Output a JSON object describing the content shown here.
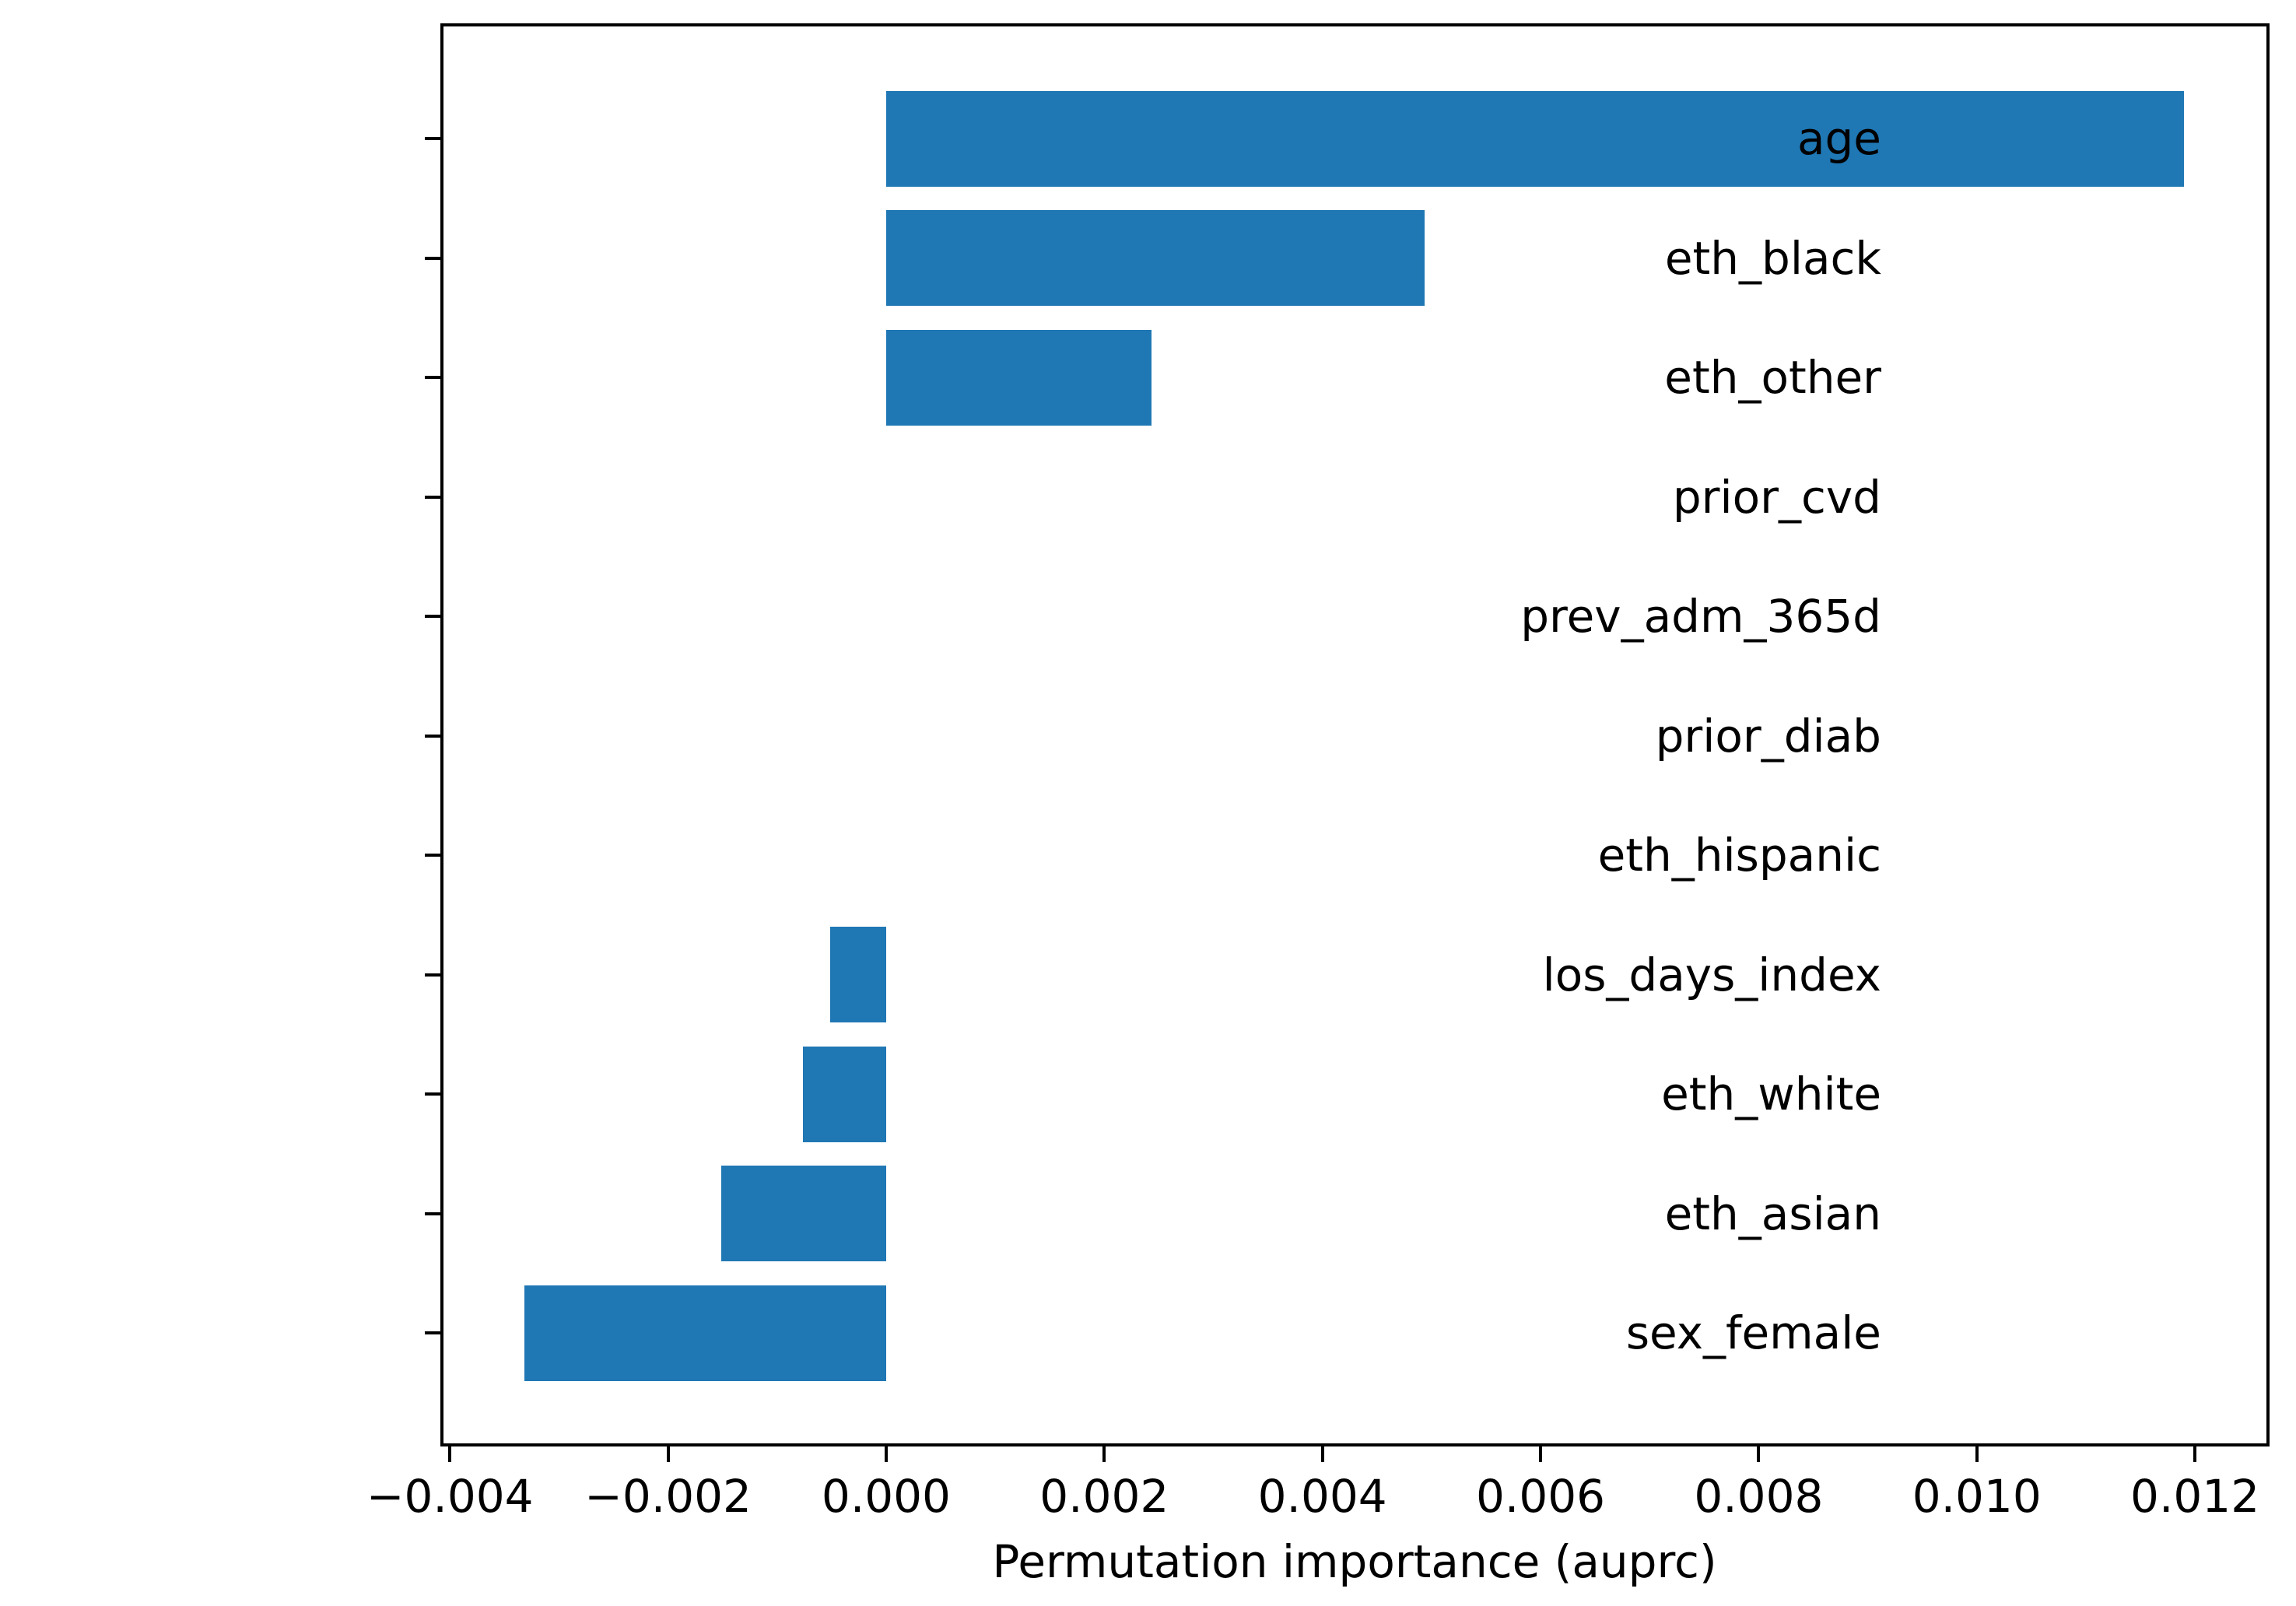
{
  "chart_data": {
    "type": "bar",
    "orientation": "horizontal",
    "title": "",
    "xlabel": "Permutation importance (auprc)",
    "ylabel": "",
    "categories": [
      "age",
      "eth_black",
      "eth_other",
      "prior_cvd",
      "prev_adm_365d",
      "prior_diab",
      "eth_hispanic",
      "los_days_index",
      "eth_white",
      "eth_asian",
      "sex_female"
    ],
    "values": [
      0.0119,
      0.00494,
      0.00243,
      0.0,
      0.0,
      0.0,
      0.0,
      -0.00051,
      -0.00076,
      -0.00151,
      -0.00332
    ],
    "xticks": [
      -0.004,
      -0.002,
      0.0,
      0.002,
      0.004,
      0.006,
      0.008,
      0.01,
      0.012
    ],
    "xtick_labels": [
      "−0.004",
      "−0.002",
      "0.000",
      "0.002",
      "0.004",
      "0.006",
      "0.008",
      "0.010",
      "0.012"
    ],
    "xlim": [
      -0.004073,
      0.01267
    ],
    "bar_color": "#1f77b4",
    "axis_color": "#000000",
    "background_color": "#ffffff",
    "grid": false,
    "legend": null
  }
}
